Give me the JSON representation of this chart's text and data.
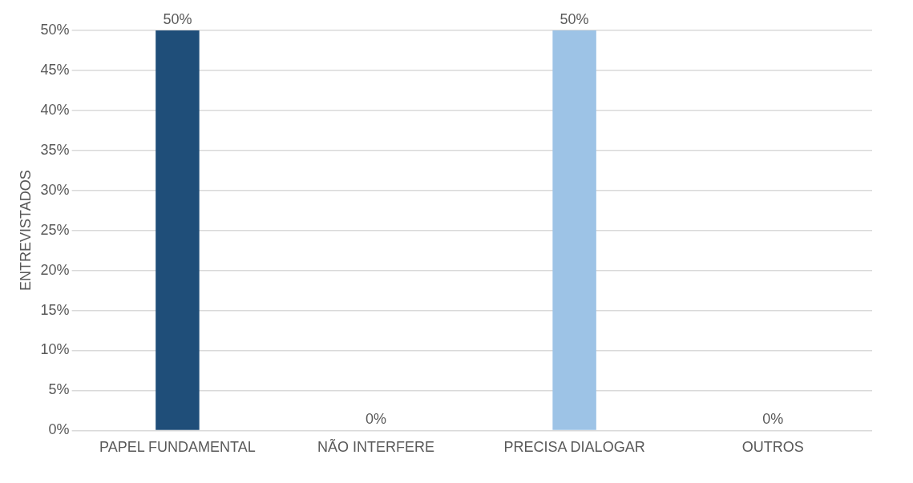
{
  "chart_data": {
    "type": "bar",
    "ylabel": "ENTREVISTADOS",
    "categories": [
      "PAPEL FUNDAMENTAL",
      "NÃO INTERFERE",
      "PRECISA DIALOGAR",
      "OUTROS"
    ],
    "values": [
      50,
      0,
      50,
      0
    ],
    "colors": [
      "#1f4e79",
      "#7f9cbb",
      "#9dc3e6",
      "#8ea4bf"
    ],
    "value_labels": [
      "50%",
      "0%",
      "50%",
      "0%"
    ],
    "ylim": [
      0,
      50
    ],
    "yticks": [
      {
        "value": 0,
        "label": "0%"
      },
      {
        "value": 5,
        "label": "5%"
      },
      {
        "value": 10,
        "label": "10%"
      },
      {
        "value": 15,
        "label": "15%"
      },
      {
        "value": 20,
        "label": "20%"
      },
      {
        "value": 25,
        "label": "25%"
      },
      {
        "value": 30,
        "label": "30%"
      },
      {
        "value": 35,
        "label": "35%"
      },
      {
        "value": 40,
        "label": "40%"
      },
      {
        "value": 45,
        "label": "45%"
      },
      {
        "value": 50,
        "label": "50%"
      }
    ],
    "grid": "y"
  }
}
